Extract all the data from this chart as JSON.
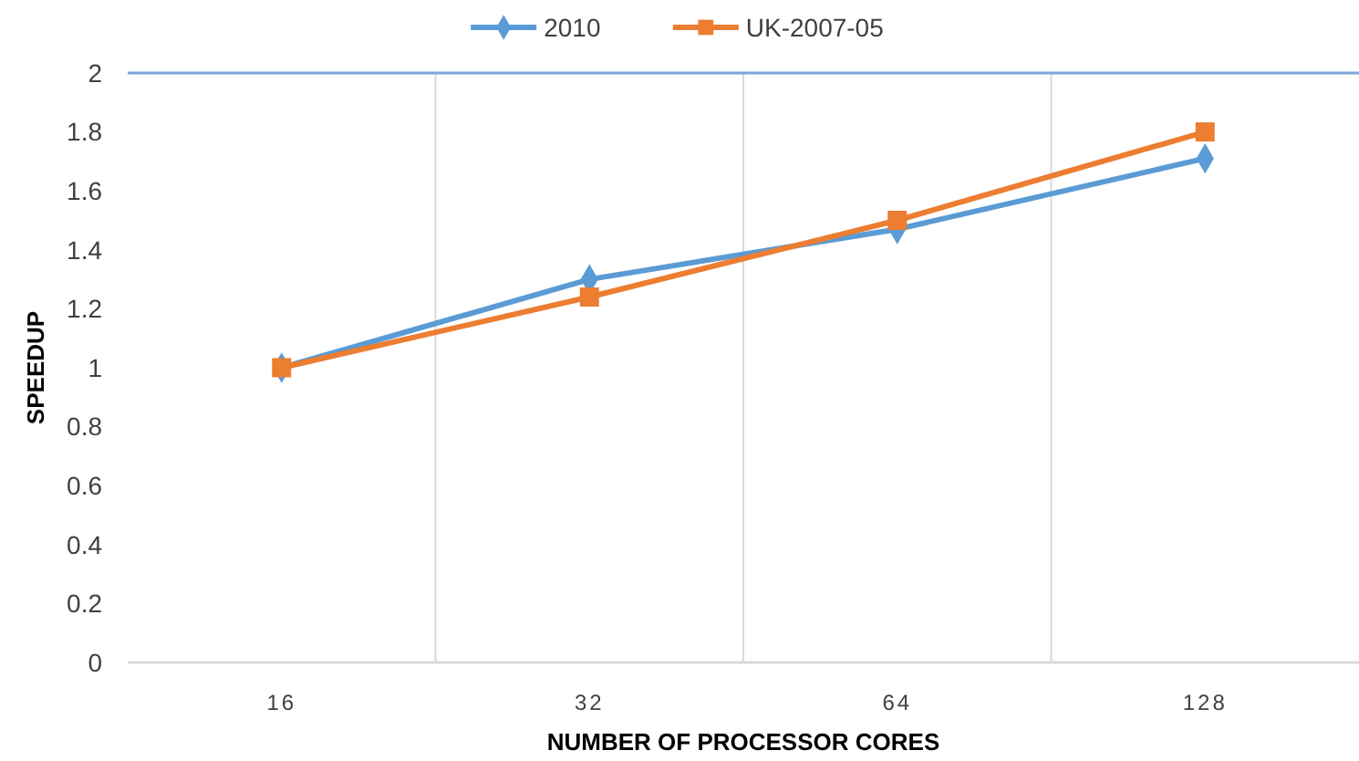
{
  "chart_data": {
    "type": "line",
    "xlabel": "NUMBER OF PROCESSOR CORES",
    "ylabel": "SPEEDUP",
    "categories": [
      "16",
      "32",
      "64",
      "128"
    ],
    "series": [
      {
        "name": "2010",
        "color": "#5b9bd5",
        "marker": "diamond",
        "values": [
          1.0,
          1.3,
          1.47,
          1.71
        ]
      },
      {
        "name": "UK-2007-05",
        "color": "#ed7d31",
        "marker": "square",
        "values": [
          1.0,
          1.24,
          1.5,
          1.8
        ]
      }
    ],
    "ylim": [
      0,
      2
    ],
    "yticks": [
      0,
      0.2,
      0.4,
      0.6,
      0.8,
      1,
      1.2,
      1.4,
      1.6,
      1.8,
      2
    ],
    "grid": "x",
    "legend": "top",
    "ref_lines": [
      {
        "axis": "y",
        "value": 2,
        "color": "#7aa6d8"
      }
    ]
  }
}
